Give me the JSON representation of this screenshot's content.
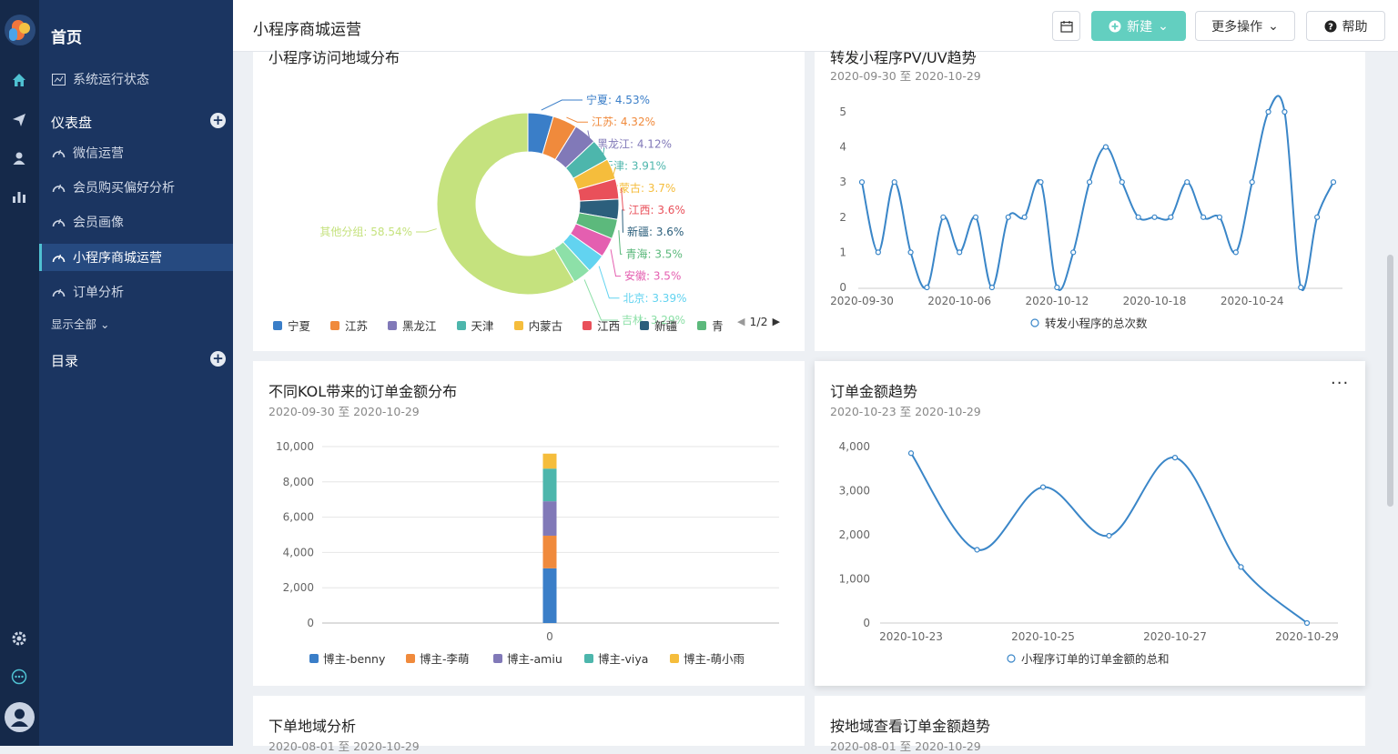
{
  "sidebar": {
    "home": "首页",
    "system_status": "系统运行状态",
    "dashboard_section": "仪表盘",
    "items": [
      "微信运营",
      "会员购买偏好分析",
      "会员画像",
      "小程序商城运营",
      "订单分析"
    ],
    "show_all": "显示全部",
    "catalog_section": "目录"
  },
  "header": {
    "title": "小程序商城运营",
    "new_label": "新建",
    "more_label": "更多操作",
    "help_label": "帮助"
  },
  "colors": {
    "primary": "#63cfc0",
    "line": "#3a86c8",
    "sidebar": "#1b3561",
    "rail": "#15294a"
  },
  "cards": {
    "region": {
      "title": "小程序访问地域分布",
      "page": "1/2"
    },
    "pvuv": {
      "title": "转发小程序PV/UV趋势",
      "subtitle": "2020-09-30 至 2020-10-29"
    },
    "kol": {
      "title": "不同KOL带来的订单金额分布",
      "subtitle": "2020-09-30 至 2020-10-29"
    },
    "order": {
      "title": "订单金额趋势",
      "subtitle": "2020-10-23 至 2020-10-29"
    },
    "geo": {
      "title": "下单地域分析",
      "subtitle": "2020-08-01 至 2020-10-29"
    },
    "geo_trend": {
      "title": "按地域查看订单金额趋势",
      "subtitle": "2020-08-01 至 2020-10-29"
    }
  },
  "chart_data": [
    {
      "type": "pie",
      "title": "小程序访问地域分布",
      "categories": [
        "宁夏",
        "江苏",
        "黑龙江",
        "天津",
        "内蒙古",
        "江西",
        "新疆",
        "青海",
        "安徽",
        "北京",
        "吉林",
        "其他分组"
      ],
      "values": [
        4.53,
        4.32,
        4.12,
        3.91,
        3.7,
        3.6,
        3.6,
        3.5,
        3.5,
        3.39,
        3.29,
        58.54
      ],
      "labels": [
        "宁夏: 4.53%",
        "江苏: 4.32%",
        "黑龙江: 4.12%",
        "天津: 3.91%",
        "内蒙古: 3.7%",
        "江西: 3.6%",
        "新疆: 3.6%",
        "青海: 3.5%",
        "安徽: 3.5%",
        "北京: 3.39%",
        "吉林: 3.29%",
        "其他分组: 58.54%"
      ],
      "colors": [
        "#3a7ec8",
        "#f08a3c",
        "#8179b8",
        "#4db6ac",
        "#f5bd3c",
        "#e9505a",
        "#2c5f7c",
        "#5cb97c",
        "#e45fb0",
        "#62d3f0",
        "#8de0a8",
        "#c5e27e"
      ],
      "legend_visible": [
        "宁夏",
        "江苏",
        "黑龙江",
        "天津",
        "内蒙古",
        "江西",
        "新疆",
        "青"
      ],
      "legend_placement": "bottom",
      "legend_page": "1/2"
    },
    {
      "type": "line",
      "title": "转发小程序PV/UV趋势",
      "x_ticks": [
        "2020-09-30",
        "2020-10-06",
        "2020-10-12",
        "2020-10-18",
        "2020-10-24"
      ],
      "x": [
        "2020-09-30",
        "2020-10-01",
        "2020-10-02",
        "2020-10-03",
        "2020-10-04",
        "2020-10-05",
        "2020-10-06",
        "2020-10-07",
        "2020-10-08",
        "2020-10-09",
        "2020-10-10",
        "2020-10-11",
        "2020-10-12",
        "2020-10-13",
        "2020-10-14",
        "2020-10-15",
        "2020-10-16",
        "2020-10-17",
        "2020-10-18",
        "2020-10-19",
        "2020-10-20",
        "2020-10-21",
        "2020-10-22",
        "2020-10-23",
        "2020-10-24",
        "2020-10-25",
        "2020-10-26",
        "2020-10-27",
        "2020-10-28",
        "2020-10-29"
      ],
      "series": [
        {
          "name": "转发小程序的总次数",
          "values": [
            3,
            1,
            3,
            1,
            0,
            2,
            1,
            2,
            0,
            2,
            2,
            3,
            0,
            1,
            3,
            4,
            3,
            2,
            2,
            2,
            3,
            2,
            2,
            1,
            3,
            5,
            5,
            0,
            2,
            3
          ]
        }
      ],
      "ylim": [
        0,
        5
      ],
      "y_ticks": [
        0,
        1,
        2,
        3,
        4,
        5
      ],
      "grid": false,
      "legend_placement": "bottom"
    },
    {
      "type": "bar",
      "stacked": true,
      "title": "不同KOL带来的订单金额分布",
      "categories": [
        "0"
      ],
      "series": [
        {
          "name": "博主-benny",
          "values": [
            3100
          ],
          "color": "#3a7ec8"
        },
        {
          "name": "博主-李萌",
          "values": [
            1850
          ],
          "color": "#f08a3c"
        },
        {
          "name": "博主-amiu",
          "values": [
            1950
          ],
          "color": "#8179b8"
        },
        {
          "name": "博主-viya",
          "values": [
            1850
          ],
          "color": "#4db6ac"
        },
        {
          "name": "博主-萌小雨",
          "values": [
            850
          ],
          "color": "#f5bd3c"
        }
      ],
      "ylim": [
        0,
        10000
      ],
      "y_ticks": [
        "0",
        "2,000",
        "4,000",
        "6,000",
        "8,000",
        "10,000"
      ],
      "grid": true,
      "legend_placement": "bottom"
    },
    {
      "type": "line",
      "title": "订单金额趋势",
      "x": [
        "2020-10-23",
        "2020-10-24",
        "2020-10-25",
        "2020-10-26",
        "2020-10-27",
        "2020-10-28",
        "2020-10-29"
      ],
      "x_ticks": [
        "2020-10-23",
        "2020-10-25",
        "2020-10-27",
        "2020-10-29"
      ],
      "series": [
        {
          "name": "小程序订单的订单金额的总和",
          "values": [
            3850,
            1660,
            3080,
            1980,
            3750,
            1270,
            0
          ]
        }
      ],
      "ylim": [
        0,
        4000
      ],
      "y_ticks": [
        "0",
        "1,000",
        "2,000",
        "3,000",
        "4,000"
      ],
      "grid": false,
      "legend_placement": "bottom"
    }
  ]
}
